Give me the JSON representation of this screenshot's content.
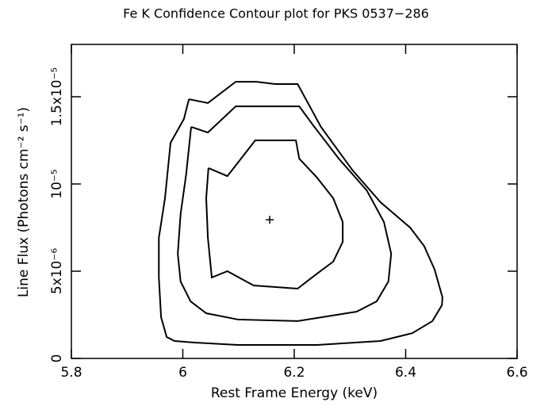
{
  "chart_data": {
    "type": "contour",
    "title": "Fe K Confidence Contour plot for PKS 0537−286",
    "x_label": "Rest Frame Energy (keV)",
    "y_label": "Line Flux (Photons cm⁻² s⁻¹)",
    "xlim": [
      5.8,
      6.6
    ],
    "xticks": [
      5.8,
      6,
      6.2,
      6.4,
      6.6
    ],
    "ylim": [
      0,
      1.8e-05
    ],
    "yticks": [
      0,
      {
        "value": 5e-06,
        "label": "5x10⁻⁶"
      },
      {
        "value": 1e-05,
        "label": "10⁻⁵"
      },
      {
        "value": 1.5e-05,
        "label": "1.5x10⁻⁵"
      }
    ],
    "color": "#000000",
    "series": [
      {
        "x": [
          6.046,
          6.08,
          6.13,
          6.203,
          6.209,
          6.241,
          6.27,
          6.287,
          6.287,
          6.27,
          6.241,
          6.206,
          6.127,
          6.08,
          6.052,
          6.045,
          6.042,
          6.046
        ],
        "y": [
          1.091e-05,
          1.045e-05,
          1.25e-05,
          1.25e-05,
          1.145e-05,
          1.036e-05,
          9.18e-06,
          7.82e-06,
          6.68e-06,
          5.55e-06,
          4.86e-06,
          4e-06,
          4.18e-06,
          5e-06,
          4.64e-06,
          6.91e-06,
          9.18e-06,
          1.091e-05
        ]
      },
      {
        "x": [
          6.015,
          6.045,
          6.095,
          6.132,
          6.209,
          6.234,
          6.28,
          6.33,
          6.361,
          6.374,
          6.369,
          6.348,
          6.312,
          6.206,
          6.099,
          6.042,
          6.014,
          5.996,
          5.991,
          5.996,
          6.006,
          6.015
        ],
        "y": [
          1.327e-05,
          1.295e-05,
          1.445e-05,
          1.445e-05,
          1.445e-05,
          1.336e-05,
          1.145e-05,
          9.64e-06,
          7.82e-06,
          6e-06,
          4.41e-06,
          3.27e-06,
          2.68e-06,
          2.14e-06,
          2.23e-06,
          2.59e-06,
          3.27e-06,
          4.41e-06,
          6e-06,
          8.27e-06,
          1.055e-05,
          1.327e-05
        ]
      },
      {
        "x": [
          6.011,
          6.045,
          6.095,
          6.132,
          6.166,
          6.206,
          6.248,
          6.305,
          6.355,
          6.408,
          6.433,
          6.452,
          6.466,
          6.465,
          6.448,
          6.412,
          6.355,
          6.241,
          6.099,
          6.021,
          5.985,
          5.971,
          5.961,
          5.957,
          5.957,
          5.968,
          5.978,
          6.002,
          6.011
        ],
        "y": [
          1.486e-05,
          1.464e-05,
          1.586e-05,
          1.586e-05,
          1.573e-05,
          1.573e-05,
          1.327e-05,
          1.077e-05,
          8.95e-06,
          7.5e-06,
          6.45e-06,
          5.09e-06,
          3.5e-06,
          3.05e-06,
          2.14e-06,
          1.45e-06,
          1e-06,
          7.7e-07,
          7.7e-07,
          9.1e-07,
          1e-06,
          1.23e-06,
          2.36e-06,
          4.64e-06,
          6.91e-06,
          9.18e-06,
          1.236e-05,
          1.373e-05,
          1.486e-05
        ]
      }
    ],
    "best_fit": {
      "x": 6.156,
      "y": 7.95e-06
    }
  }
}
